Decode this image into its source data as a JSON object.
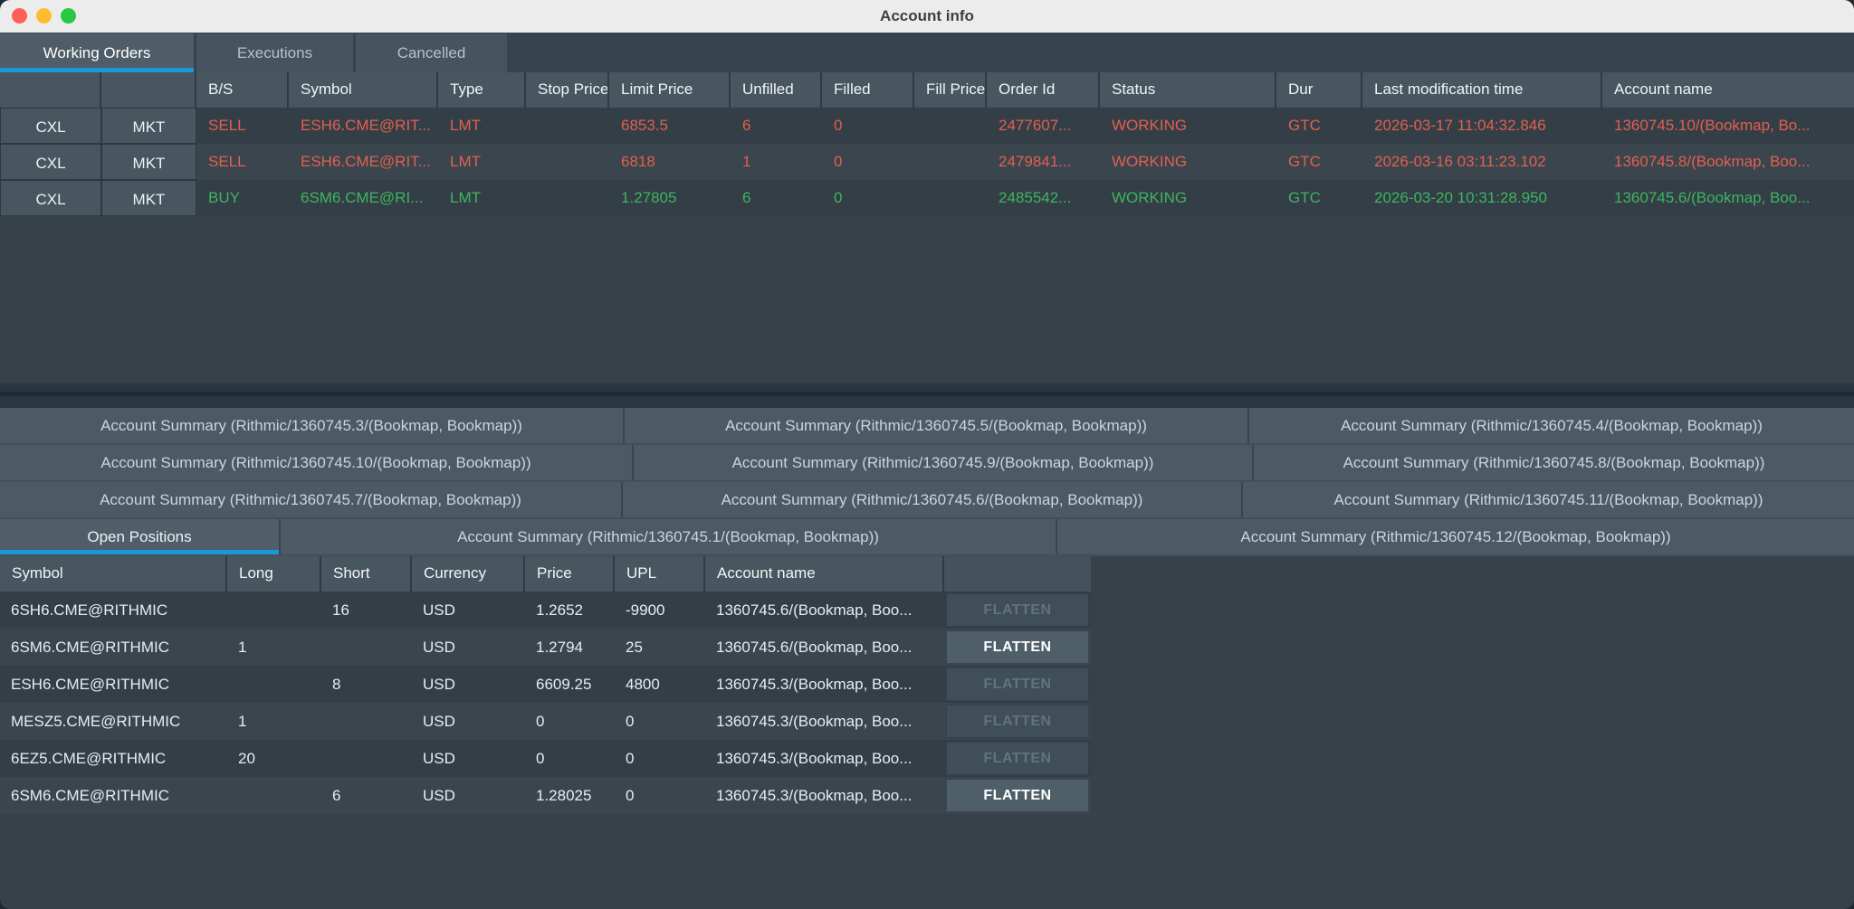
{
  "window": {
    "title": "Account info"
  },
  "colors": {
    "sell": "#e2604f",
    "buy": "#3db55e",
    "accent_blue": "#1e97d6"
  },
  "top_tabs": [
    {
      "label": "Working Orders",
      "active": true
    },
    {
      "label": "Executions",
      "active": false
    },
    {
      "label": "Cancelled",
      "active": false
    }
  ],
  "orders": {
    "cxl_label": "CXL",
    "mkt_label": "MKT",
    "columns": [
      "",
      "",
      "B/S",
      "Symbol",
      "Type",
      "Stop Price",
      "Limit Price",
      "Unfilled",
      "Filled",
      "Fill Price",
      "Order Id",
      "Status",
      "Dur",
      "Last modification time",
      "Account name"
    ],
    "rows": [
      {
        "side": "SELL",
        "symbol": "ESH6.CME@RIT...",
        "type": "LMT",
        "stop_price": "",
        "limit_price": "6853.5",
        "unfilled": "6",
        "filled": "0",
        "fill_price": "",
        "order_id": "2477607...",
        "status": "WORKING",
        "dur": "GTC",
        "last_mod": "2026-03-17 11:04:32.846",
        "account": "1360745.10/(Bookmap, Bo..."
      },
      {
        "side": "SELL",
        "symbol": "ESH6.CME@RIT...",
        "type": "LMT",
        "stop_price": "",
        "limit_price": "6818",
        "unfilled": "1",
        "filled": "0",
        "fill_price": "",
        "order_id": "2479841...",
        "status": "WORKING",
        "dur": "GTC",
        "last_mod": "2026-03-16 03:11:23.102",
        "account": "1360745.8/(Bookmap, Boo..."
      },
      {
        "side": "BUY",
        "symbol": "6SM6.CME@RI...",
        "type": "LMT",
        "stop_price": "",
        "limit_price": "1.27805",
        "unfilled": "6",
        "filled": "0",
        "fill_price": "",
        "order_id": "2485542...",
        "status": "WORKING",
        "dur": "GTC",
        "last_mod": "2026-03-20 10:31:28.950",
        "account": "1360745.6/(Bookmap, Boo..."
      }
    ]
  },
  "summary_tabs": {
    "rows": [
      [
        "Account Summary (Rithmic/1360745.3/(Bookmap, Bookmap))",
        "Account Summary (Rithmic/1360745.5/(Bookmap, Bookmap))",
        "Account Summary (Rithmic/1360745.4/(Bookmap, Bookmap))"
      ],
      [
        "Account Summary (Rithmic/1360745.10/(Bookmap, Bookmap))",
        "Account Summary (Rithmic/1360745.9/(Bookmap, Bookmap))",
        "Account Summary (Rithmic/1360745.8/(Bookmap, Bookmap))"
      ],
      [
        "Account Summary (Rithmic/1360745.7/(Bookmap, Bookmap))",
        "Account Summary (Rithmic/1360745.6/(Bookmap, Bookmap))",
        "Account Summary (Rithmic/1360745.11/(Bookmap, Bookmap))"
      ]
    ],
    "open_positions_label": "Open Positions",
    "row4": [
      "Account Summary (Rithmic/1360745.1/(Bookmap, Bookmap))",
      "Account Summary (Rithmic/1360745.12/(Bookmap, Bookmap))"
    ]
  },
  "positions": {
    "columns": [
      "Symbol",
      "Long",
      "Short",
      "Currency",
      "Price",
      "UPL",
      "Account name",
      ""
    ],
    "flatten_label": "FLATTEN",
    "rows": [
      {
        "symbol": "6SH6.CME@RITHMIC",
        "long": "",
        "short": "16",
        "currency": "USD",
        "price": "1.2652",
        "upl": "-9900",
        "account": "1360745.6/(Bookmap, Boo...",
        "flatten_enabled": false
      },
      {
        "symbol": "6SM6.CME@RITHMIC",
        "long": "1",
        "short": "",
        "currency": "USD",
        "price": "1.2794",
        "upl": "25",
        "account": "1360745.6/(Bookmap, Boo...",
        "flatten_enabled": true
      },
      {
        "symbol": "ESH6.CME@RITHMIC",
        "long": "",
        "short": "8",
        "currency": "USD",
        "price": "6609.25",
        "upl": "4800",
        "account": "1360745.3/(Bookmap, Boo...",
        "flatten_enabled": false
      },
      {
        "symbol": "MESZ5.CME@RITHMIC",
        "long": "1",
        "short": "",
        "currency": "USD",
        "price": "0",
        "upl": "0",
        "account": "1360745.3/(Bookmap, Boo...",
        "flatten_enabled": false
      },
      {
        "symbol": "6EZ5.CME@RITHMIC",
        "long": "20",
        "short": "",
        "currency": "USD",
        "price": "0",
        "upl": "0",
        "account": "1360745.3/(Bookmap, Boo...",
        "flatten_enabled": false
      },
      {
        "symbol": "6SM6.CME@RITHMIC",
        "long": "",
        "short": "6",
        "currency": "USD",
        "price": "1.28025",
        "upl": "0",
        "account": "1360745.3/(Bookmap, Boo...",
        "flatten_enabled": true
      }
    ]
  }
}
